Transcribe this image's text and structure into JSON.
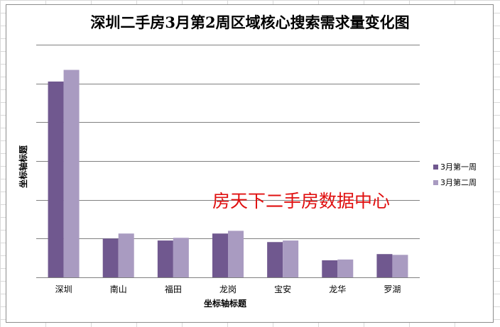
{
  "chart_data": {
    "type": "bar",
    "title": "深圳二手房3月第2周区域核心搜索需求量变化图",
    "xlabel": "坐标轴标题",
    "ylabel": "坐标轴标题",
    "categories": [
      "深圳",
      "南山",
      "福田",
      "龙岗",
      "宝安",
      "龙华",
      "罗湖"
    ],
    "series": [
      {
        "name": "3月第一周",
        "color": "#70588f",
        "values": [
          50.5,
          10.0,
          9.5,
          11.3,
          9.1,
          4.4,
          6.0
        ]
      },
      {
        "name": "3月第二周",
        "color": "#a99bc1",
        "values": [
          53.5,
          11.3,
          10.2,
          12.0,
          9.5,
          4.6,
          5.8
        ]
      }
    ],
    "ylim": [
      0,
      60
    ],
    "y_gridlines": 6,
    "show_y_tick_labels": false,
    "grid": true,
    "legend": "right"
  },
  "watermark": "房天下二手房数据中心"
}
